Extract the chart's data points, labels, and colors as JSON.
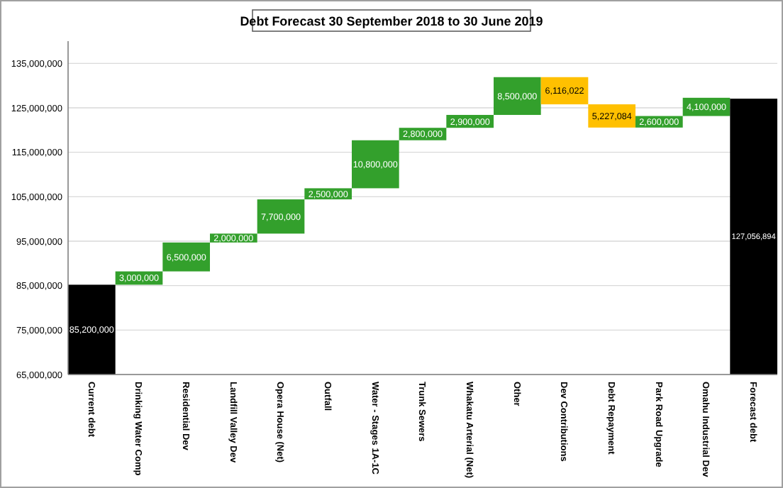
{
  "chart_data": {
    "type": "bar",
    "title": "Debt Forecast 30 September 2018 to 30 June 2019",
    "categories": [
      "Current debt",
      "Drinking Water Comp",
      "Residential Dev",
      "Landfill Valley Dev",
      "Opera House (Net)",
      "Outfall",
      "Water - Stages 1A-1C",
      "Trunk Sewers",
      "Whakatu Arterial (Net)",
      "Other",
      "Dev Contributions",
      "Debt Repayment",
      "Park Road Upgrade",
      "Omahu Industrial Dev",
      "Forecast debt"
    ],
    "values": [
      85200000,
      3000000,
      6500000,
      2000000,
      7700000,
      2500000,
      10800000,
      2800000,
      2900000,
      8500000,
      -6116022,
      -5227084,
      2600000,
      4100000,
      127056894
    ],
    "base": [
      0,
      85200000,
      88200000,
      94700000,
      96700000,
      104400000,
      106900000,
      117700000,
      120500000,
      123400000,
      131900000,
      125783978,
      120556894,
      123156894,
      0
    ],
    "colors": [
      "#000000",
      "#33a02c",
      "#33a02c",
      "#33a02c",
      "#33a02c",
      "#33a02c",
      "#33a02c",
      "#33a02c",
      "#33a02c",
      "#33a02c",
      "#ffc000",
      "#ffc000",
      "#33a02c",
      "#33a02c",
      "#000000"
    ],
    "value_labels": [
      "85,200,000",
      "3,000,000",
      "6,500,000",
      "2,000,000",
      "7,700,000",
      "2,500,000",
      "10,800,000",
      "2,800,000",
      "2,900,000",
      "8,500,000",
      "6,116,022",
      "5,227,084",
      "2,600,000",
      "4,100,000",
      "127,056,894"
    ],
    "ylim": [
      65000000,
      140000000
    ],
    "yticks": [
      {
        "value": 65000000,
        "label": "65,000,000"
      },
      {
        "value": 75000000,
        "label": "75,000,000"
      },
      {
        "value": 85000000,
        "label": "85,000,000"
      },
      {
        "value": 95000000,
        "label": "95,000,000"
      },
      {
        "value": 105000000,
        "label": "105,000,000"
      },
      {
        "value": 115000000,
        "label": "115,000,000"
      },
      {
        "value": 125000000,
        "label": "125,000,000"
      },
      {
        "value": 135000000,
        "label": "135,000,000"
      }
    ],
    "grid": "y"
  }
}
